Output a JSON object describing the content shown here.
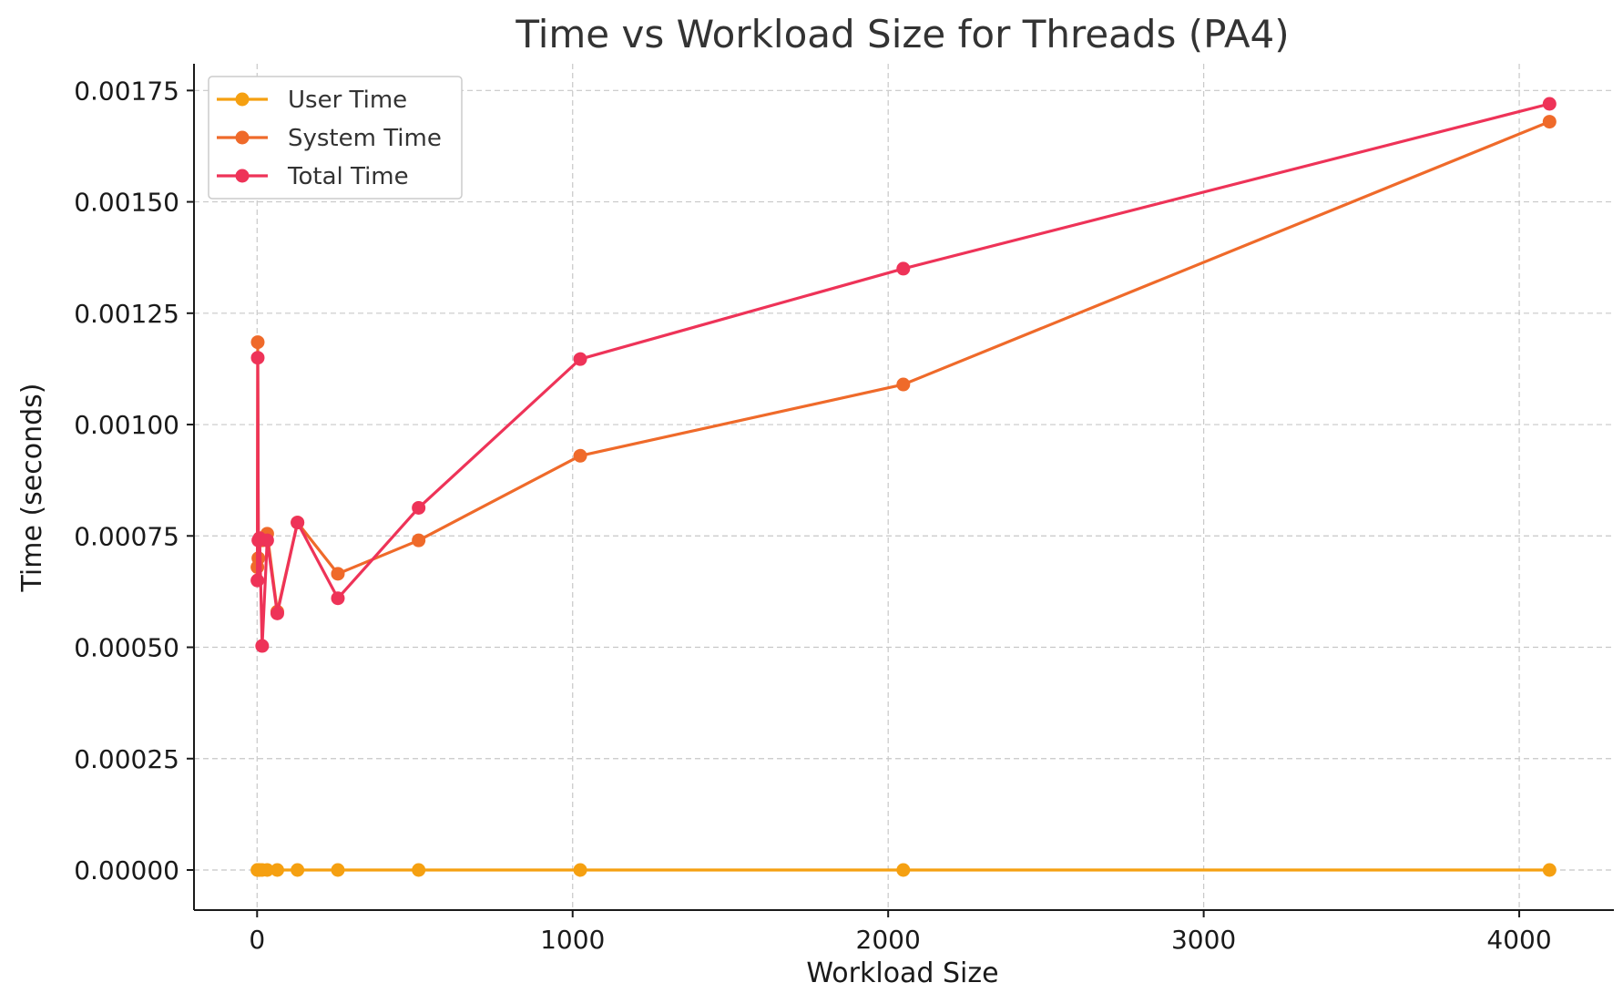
{
  "chart_data": {
    "type": "line",
    "title": "Time vs Workload Size for Threads (PA4)",
    "xlabel": "Workload Size",
    "ylabel": "Time (seconds)",
    "xlim": [
      -200,
      4300
    ],
    "ylim": [
      -9e-05,
      0.00181
    ],
    "xticks": [
      0,
      1000,
      2000,
      3000,
      4000
    ],
    "xtick_labels": [
      "0",
      "1000",
      "2000",
      "3000",
      "4000"
    ],
    "yticks": [
      0,
      0.00025,
      0.0005,
      0.00075,
      0.001,
      0.00125,
      0.0015,
      0.00175
    ],
    "ytick_labels": [
      "0.00000",
      "0.00025",
      "0.00050",
      "0.00075",
      "0.00100",
      "0.00125",
      "0.00150",
      "0.00175"
    ],
    "grid": true,
    "legend_position": "top-left",
    "x": [
      1,
      2,
      4,
      8,
      16,
      32,
      64,
      128,
      256,
      512,
      1024,
      2048,
      4096
    ],
    "series": [
      {
        "name": "User Time",
        "color": "#f5a011",
        "values": [
          0,
          0,
          0,
          0,
          0,
          0,
          0,
          0,
          0,
          0,
          0,
          0,
          0
        ]
      },
      {
        "name": "System Time",
        "color": "#ef6a2a",
        "values": [
          0.00068,
          0.001185,
          0.0007,
          0.00074,
          0.00074,
          0.000755,
          0.00058,
          0.00078,
          0.000665,
          0.00074,
          0.00093,
          0.00109,
          0.00168
        ]
      },
      {
        "name": "Total Time",
        "color": "#ee3358",
        "values": [
          0.00065,
          0.00115,
          0.00074,
          0.000745,
          0.000503,
          0.00074,
          0.000576,
          0.00078,
          0.00061,
          0.000813,
          0.001147,
          0.00135,
          0.00172
        ]
      }
    ]
  }
}
